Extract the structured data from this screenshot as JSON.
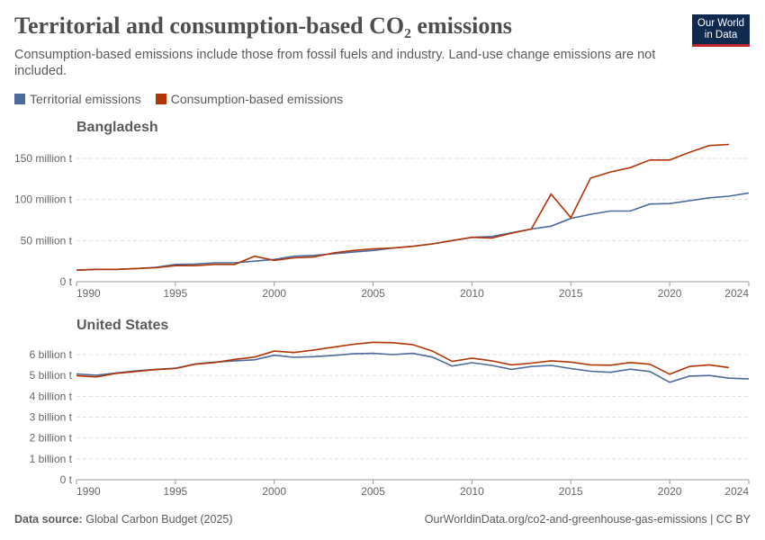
{
  "title": "Territorial and consumption-based CO₂ emissions",
  "subtitle": "Consumption-based emissions include those from fossil fuels and industry. Land-use change emissions are not included.",
  "logo": "Our World in Data",
  "footer": {
    "source_label": "Data source:",
    "source": "Global Carbon Budget (2025)",
    "url": "OurWorldinData.org/co2-and-greenhouse-gas-emissions | CC BY"
  },
  "legend": [
    {
      "name": "Territorial emissions",
      "color": "#4c6a9c"
    },
    {
      "name": "Consumption-based emissions",
      "color": "#b13507"
    }
  ],
  "chart_data": [
    {
      "type": "line",
      "title": "Bangladesh",
      "xlim": [
        1990,
        2024
      ],
      "ylim": [
        0,
        150
      ],
      "grid": true,
      "x_ticks": [
        "1990",
        "1995",
        "2000",
        "2005",
        "2010",
        "2015",
        "2020",
        "2024"
      ],
      "y_ticks": [
        {
          "v": 0,
          "label": "0 t"
        },
        {
          "v": 50,
          "label": "50 million t"
        },
        {
          "v": 100,
          "label": "100 million t"
        },
        {
          "v": 150,
          "label": "150 million t"
        }
      ],
      "series": [
        {
          "name": "Territorial emissions",
          "start": 1990,
          "values": [
            14,
            15,
            15,
            16,
            17.5,
            21,
            21.5,
            23,
            23,
            25,
            27,
            31,
            32,
            34,
            36,
            38,
            41,
            43,
            46,
            50,
            54,
            55,
            59.5,
            64,
            67.5,
            77,
            82,
            86,
            86,
            94.5,
            95,
            98.5,
            102,
            104,
            108
          ]
        },
        {
          "name": "Consumption-based emissions",
          "start": 1990,
          "values": [
            14,
            15,
            15,
            16,
            17,
            19.5,
            19.5,
            21,
            21,
            31,
            26,
            29,
            30,
            35,
            38,
            40,
            41,
            43,
            46,
            50,
            54,
            53,
            59,
            64,
            106.5,
            78,
            126,
            133.5,
            138.7,
            148,
            148,
            157.5,
            165.7,
            167
          ]
        }
      ]
    },
    {
      "type": "line",
      "title": "United States",
      "xlim": [
        1990,
        2024
      ],
      "ylim": [
        0,
        6
      ],
      "grid": true,
      "x_ticks": [
        "1990",
        "1995",
        "2000",
        "2005",
        "2010",
        "2015",
        "2020",
        "2024"
      ],
      "y_ticks": [
        {
          "v": 0,
          "label": "0 t"
        },
        {
          "v": 1,
          "label": "1 billion t"
        },
        {
          "v": 2,
          "label": "2 billion t"
        },
        {
          "v": 3,
          "label": "3 billion t"
        },
        {
          "v": 4,
          "label": "4 billion t"
        },
        {
          "v": 5,
          "label": "5 billion t"
        },
        {
          "v": 6,
          "label": "6 billion t"
        }
      ],
      "series": [
        {
          "name": "Territorial emissions",
          "start": 1990,
          "values": [
            5.07,
            5.01,
            5.12,
            5.22,
            5.29,
            5.35,
            5.55,
            5.64,
            5.7,
            5.75,
            5.97,
            5.87,
            5.9,
            5.96,
            6.04,
            6.06,
            6.0,
            6.06,
            5.88,
            5.45,
            5.61,
            5.48,
            5.29,
            5.43,
            5.48,
            5.33,
            5.2,
            5.15,
            5.3,
            5.19,
            4.67,
            4.97,
            5.0,
            4.87,
            4.84
          ]
        },
        {
          "name": "Consumption-based emissions",
          "start": 1990,
          "values": [
            4.99,
            4.93,
            5.1,
            5.19,
            5.28,
            5.33,
            5.54,
            5.62,
            5.77,
            5.88,
            6.17,
            6.1,
            6.22,
            6.36,
            6.49,
            6.59,
            6.57,
            6.48,
            6.17,
            5.67,
            5.83,
            5.7,
            5.51,
            5.59,
            5.7,
            5.64,
            5.51,
            5.49,
            5.62,
            5.54,
            5.06,
            5.43,
            5.51,
            5.38
          ]
        }
      ]
    }
  ]
}
